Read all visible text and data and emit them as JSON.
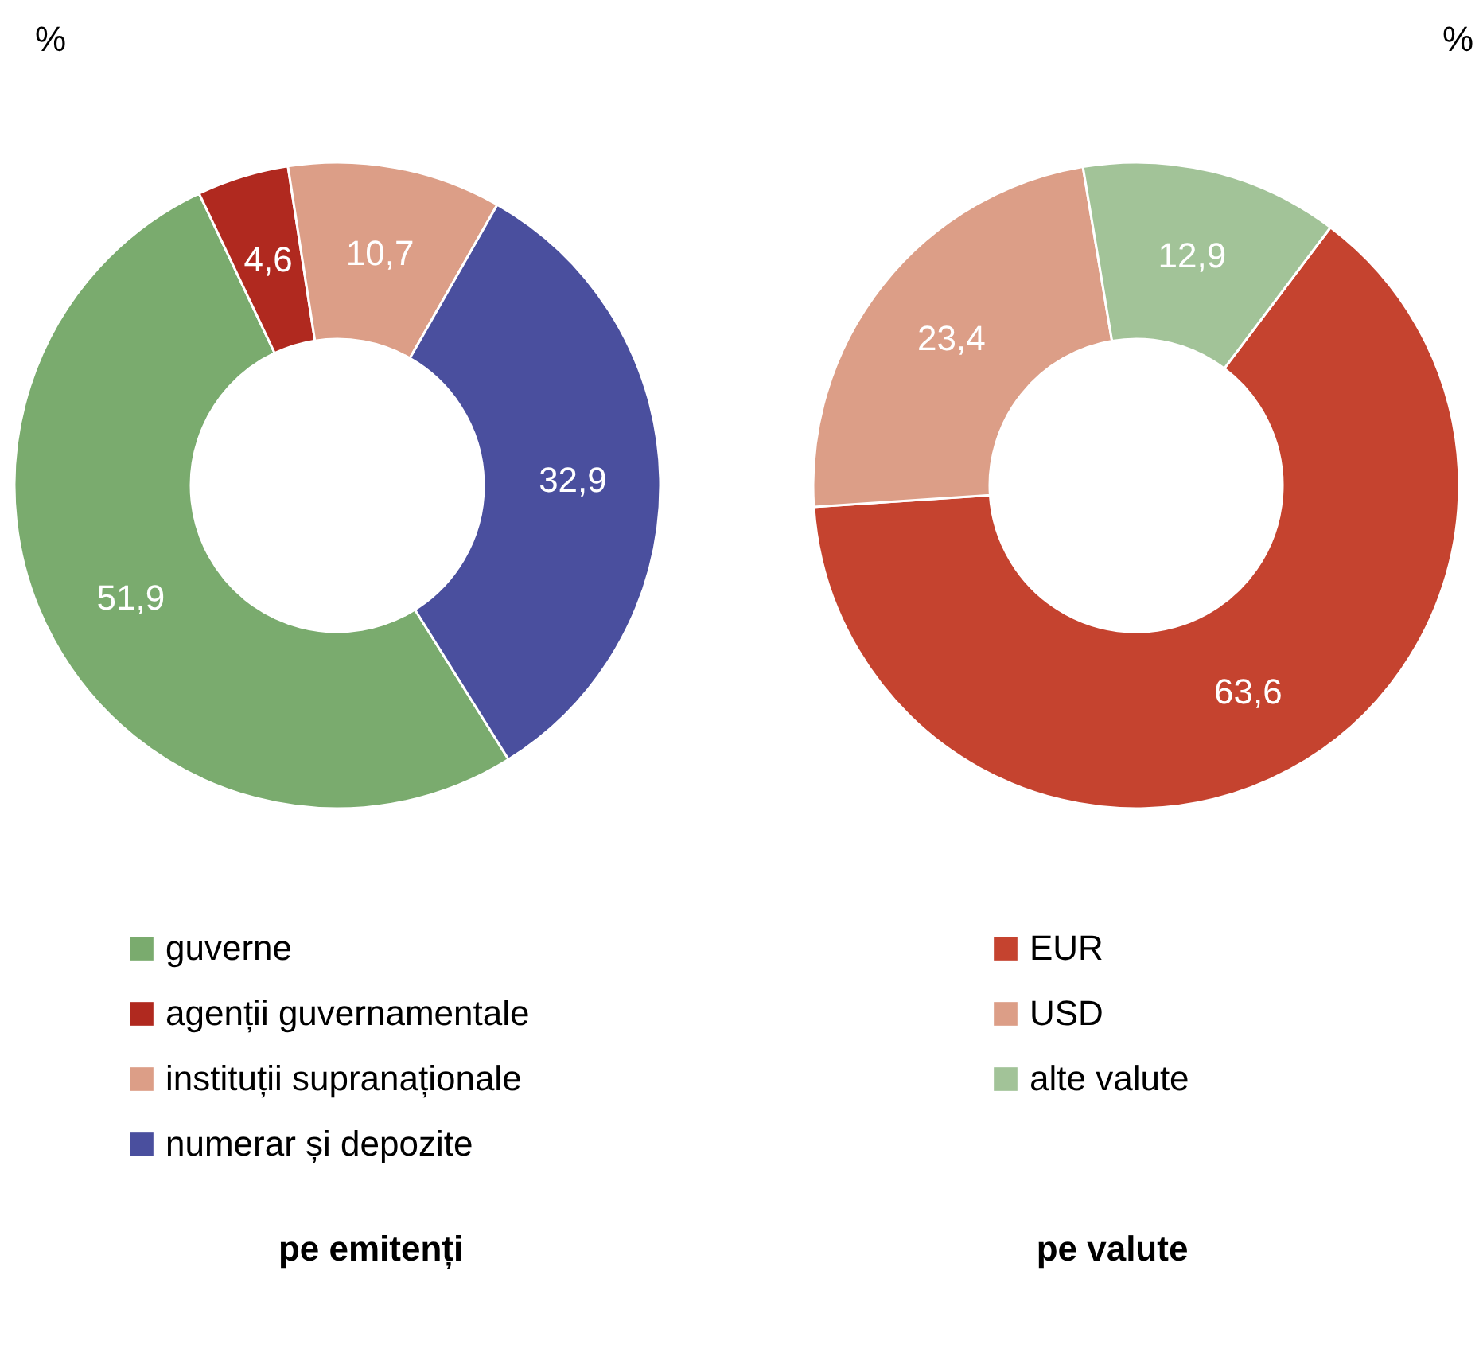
{
  "chart_data": [
    {
      "type": "donut",
      "title": "pe emitenți",
      "annotations": [
        "%"
      ],
      "categories": [
        "guverne",
        "agenții guvernamentale",
        "instituții supranaționale",
        "numerar  și depozite"
      ],
      "values": [
        51.9,
        4.6,
        10.7,
        32.9
      ],
      "colors": [
        "#7aab6e",
        "#b0291f",
        "#dc9e87",
        "#4a4f9e"
      ],
      "value_labels": [
        "51,9",
        "4,6",
        "10,7",
        "32,9"
      ],
      "legend": "bottom"
    },
    {
      "type": "donut",
      "title": "pe valute",
      "annotations": [
        "%"
      ],
      "categories": [
        "EUR",
        "USD",
        "alte valute"
      ],
      "values": [
        63.6,
        23.4,
        12.9
      ],
      "colors": [
        "#c5432f",
        "#dc9e87",
        "#a2c398"
      ],
      "value_labels": [
        "63,6",
        "23,4",
        "12,9"
      ],
      "legend": "bottom"
    }
  ]
}
